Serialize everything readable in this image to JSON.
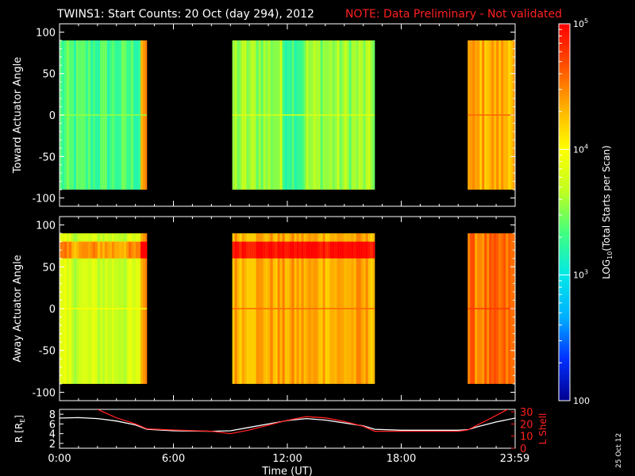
{
  "header": {
    "title": "TWINS1: Start Counts: 20 Oct (day 294), 2012",
    "note": "NOTE: Data Preliminary - Not validated",
    "note_color": "#ff2020"
  },
  "footer": {
    "stamp": "25 Oct 12"
  },
  "chart_data": [
    {
      "type": "heatmap",
      "ylabel": "Toward Actuator Angle",
      "ylim": [
        -110,
        110
      ],
      "yticks": [
        "100",
        "50",
        "0",
        "-50",
        "-100"
      ],
      "ytick_values": [
        100,
        50,
        0,
        -50,
        -100
      ],
      "x_range_hours": [
        0,
        24
      ],
      "data_y_range": [
        -90,
        90
      ],
      "segments": [
        {
          "start_h": 0.0,
          "end_h": 4.6,
          "level": "low",
          "edge": "high"
        },
        {
          "start_h": 9.1,
          "end_h": 16.6,
          "level": "mid-low",
          "edge": "none"
        },
        {
          "start_h": 21.5,
          "end_h": 24.0,
          "level": "high",
          "edge": "none"
        }
      ]
    },
    {
      "type": "heatmap",
      "ylabel": "Away Actuator Angle",
      "ylim": [
        -110,
        110
      ],
      "yticks": [
        "100",
        "50",
        "0",
        "-50",
        "-100"
      ],
      "ytick_values": [
        100,
        50,
        0,
        -50,
        -100
      ],
      "x_range_hours": [
        0,
        24
      ],
      "data_y_range": [
        -90,
        90
      ],
      "segments": [
        {
          "start_h": 0.0,
          "end_h": 4.6,
          "level": "mid",
          "edge": "high"
        },
        {
          "start_h": 9.1,
          "end_h": 16.6,
          "level": "high",
          "edge": "none"
        },
        {
          "start_h": 21.5,
          "end_h": 24.0,
          "level": "very-high",
          "edge": "none"
        }
      ]
    },
    {
      "type": "line",
      "ylabel": "R [RE]",
      "ylabel_main": "R [R",
      "ylabel_sub": "E",
      "ylabel_end": "]",
      "y2label": "L Shell",
      "xlabel": "Time (UT)",
      "xticks": [
        "0:00",
        "6:00",
        "12:00",
        "18:00",
        "23:59"
      ],
      "xtick_hours": [
        0,
        6,
        12,
        18,
        23.98
      ],
      "ylim": [
        1,
        9
      ],
      "yticks": [
        "8",
        "6",
        "4",
        "2"
      ],
      "ytick_values": [
        8,
        6,
        4,
        2
      ],
      "y2lim": [
        0,
        32
      ],
      "y2ticks": [
        "30",
        "20",
        "10",
        "0"
      ],
      "y2tick_values": [
        30,
        20,
        10,
        0
      ],
      "y2_color": "#ff2020",
      "series": [
        {
          "name": "R",
          "axis": "left",
          "color": "#ffffff",
          "x": [
            0,
            1,
            2,
            3,
            4,
            4.6,
            6,
            8,
            9,
            10,
            11,
            12,
            13,
            14,
            15,
            16,
            16.6,
            18,
            20,
            21,
            21.5,
            22,
            23,
            24
          ],
          "y": [
            7.2,
            7.3,
            7.1,
            6.6,
            5.8,
            4.9,
            4.6,
            4.5,
            4.6,
            5.3,
            6.0,
            6.7,
            7.1,
            6.8,
            6.2,
            5.6,
            4.9,
            4.7,
            4.7,
            4.7,
            4.8,
            5.4,
            6.4,
            7.2
          ]
        },
        {
          "name": "L Shell",
          "axis": "right",
          "color": "#ff2020",
          "x": [
            2.0,
            3.0,
            4.0,
            4.6,
            6.0,
            8.0,
            9.0,
            10.0,
            11.0,
            12.0,
            13.0,
            14.0,
            15.0,
            16.0,
            16.6,
            18.0,
            20.0,
            21.0,
            21.5,
            22.0,
            23.0,
            23.6
          ],
          "y": [
            32,
            25,
            20,
            16,
            15,
            14,
            12,
            15,
            19,
            23,
            26,
            25,
            22,
            18,
            14,
            14,
            14,
            14,
            15,
            19,
            27,
            32
          ]
        }
      ]
    },
    {
      "type": "colorbar",
      "label": "LOG10(Total Starts per Scan)",
      "label_main": "LOG",
      "label_sub": "10",
      "label_end": "(Total Starts per Scan)",
      "scale": "log",
      "range": [
        100,
        100000
      ],
      "ticks": [
        {
          "value": 100000,
          "base": "10",
          "exp": "5"
        },
        {
          "value": 10000,
          "base": "10",
          "exp": "4"
        },
        {
          "value": 1000,
          "base": "10",
          "exp": "3"
        },
        {
          "value": 100,
          "base": "100",
          "exp": ""
        }
      ],
      "colors": [
        "#000090",
        "#0030ff",
        "#00b0ff",
        "#00e8e8",
        "#40ff80",
        "#c0ff20",
        "#ffff00",
        "#ffb000",
        "#ff5000",
        "#ff0000"
      ]
    }
  ]
}
